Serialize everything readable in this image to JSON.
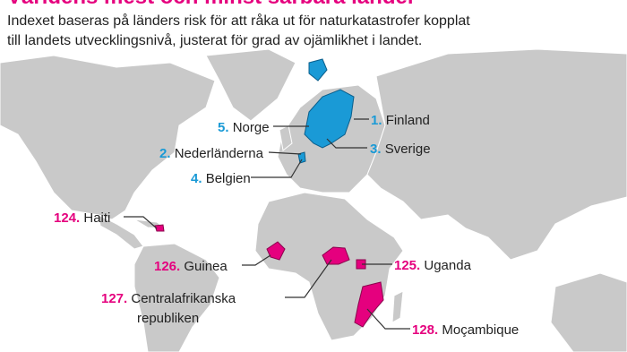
{
  "header": {
    "title": "Världens mest och minst sårbara länder",
    "subtitle": [
      "Indexet baseras på länders risk för att råka ut för naturkatastrofer kopplat",
      "till landets utvecklingsnivå, justerat för grad av ojämlikhet i landet."
    ]
  },
  "labels": [
    {
      "rank": "1.",
      "name": "Finland"
    },
    {
      "rank": "5.",
      "name": "Norge"
    },
    {
      "rank": "2.",
      "name": "Nederländerna"
    },
    {
      "rank": "3.",
      "name": "Sverige"
    },
    {
      "rank": "4.",
      "name": "Belgien"
    },
    {
      "rank": "124.",
      "name": "Haiti"
    },
    {
      "rank": "126.",
      "name": "Guinea"
    },
    {
      "rank": "125.",
      "name": "Uganda"
    },
    {
      "rank": "127.",
      "name": "Centralafrikanska",
      "name_cont": "republiken"
    },
    {
      "rank": "128.",
      "name": "Moçambique"
    }
  ]
}
